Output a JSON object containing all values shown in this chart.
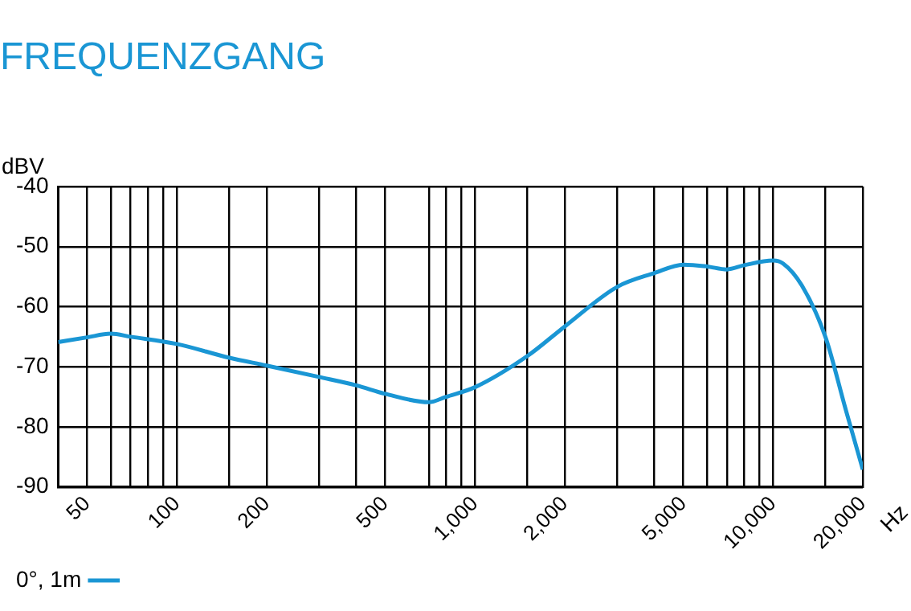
{
  "chart_data": {
    "type": "line",
    "title": "FREQUENZGANG",
    "xlabel": "Hz",
    "ylabel": "dBV",
    "log": "x",
    "grid": true,
    "legend": "bottom left",
    "marker": "none",
    "line_style": "solid",
    "xlim": [
      40,
      20000
    ],
    "ylim": [
      -90,
      -40
    ],
    "yticks": [
      -90,
      -80,
      -70,
      -60,
      -50,
      -40
    ],
    "xticks": [
      {
        "value": 50,
        "label": "50"
      },
      {
        "value": 60,
        "label": null
      },
      {
        "value": 70,
        "label": null
      },
      {
        "value": 80,
        "label": null
      },
      {
        "value": 90,
        "label": null
      },
      {
        "value": 100,
        "label": "100"
      },
      {
        "value": 150,
        "label": null
      },
      {
        "value": 200,
        "label": "200"
      },
      {
        "value": 300,
        "label": null
      },
      {
        "value": 400,
        "label": null
      },
      {
        "value": 500,
        "label": "500"
      },
      {
        "value": 700,
        "label": null
      },
      {
        "value": 800,
        "label": null
      },
      {
        "value": 900,
        "label": null
      },
      {
        "value": 1000,
        "label": "1,000"
      },
      {
        "value": 1500,
        "label": null
      },
      {
        "value": 2000,
        "label": "2,000"
      },
      {
        "value": 3000,
        "label": null
      },
      {
        "value": 4000,
        "label": null
      },
      {
        "value": 5000,
        "label": "5,000"
      },
      {
        "value": 6000,
        "label": null
      },
      {
        "value": 7000,
        "label": null
      },
      {
        "value": 8000,
        "label": null
      },
      {
        "value": 9000,
        "label": null
      },
      {
        "value": 10000,
        "label": "10,000"
      },
      {
        "value": 15000,
        "label": null
      },
      {
        "value": 20000,
        "label": "20,000"
      }
    ],
    "series": [
      {
        "name": "0°, 1m",
        "color": "#1a96d4",
        "x": [
          40,
          50,
          60,
          70,
          100,
          150,
          200,
          300,
          400,
          500,
          700,
          800,
          1000,
          1500,
          2000,
          3000,
          4000,
          5000,
          6000,
          7000,
          8000,
          10000,
          10800,
          12500,
          15000,
          17500,
          20000
        ],
        "values": [
          -65.9,
          -65.1,
          -64.5,
          -65.0,
          -66.2,
          -68.5,
          -69.8,
          -71.7,
          -73.1,
          -74.5,
          -75.9,
          -75.0,
          -73.4,
          -68.2,
          -63.3,
          -56.7,
          -54.4,
          -53.0,
          -53.3,
          -53.8,
          -53.1,
          -52.3,
          -52.8,
          -56.5,
          -65.1,
          -77.0,
          -87.1
        ]
      }
    ]
  }
}
